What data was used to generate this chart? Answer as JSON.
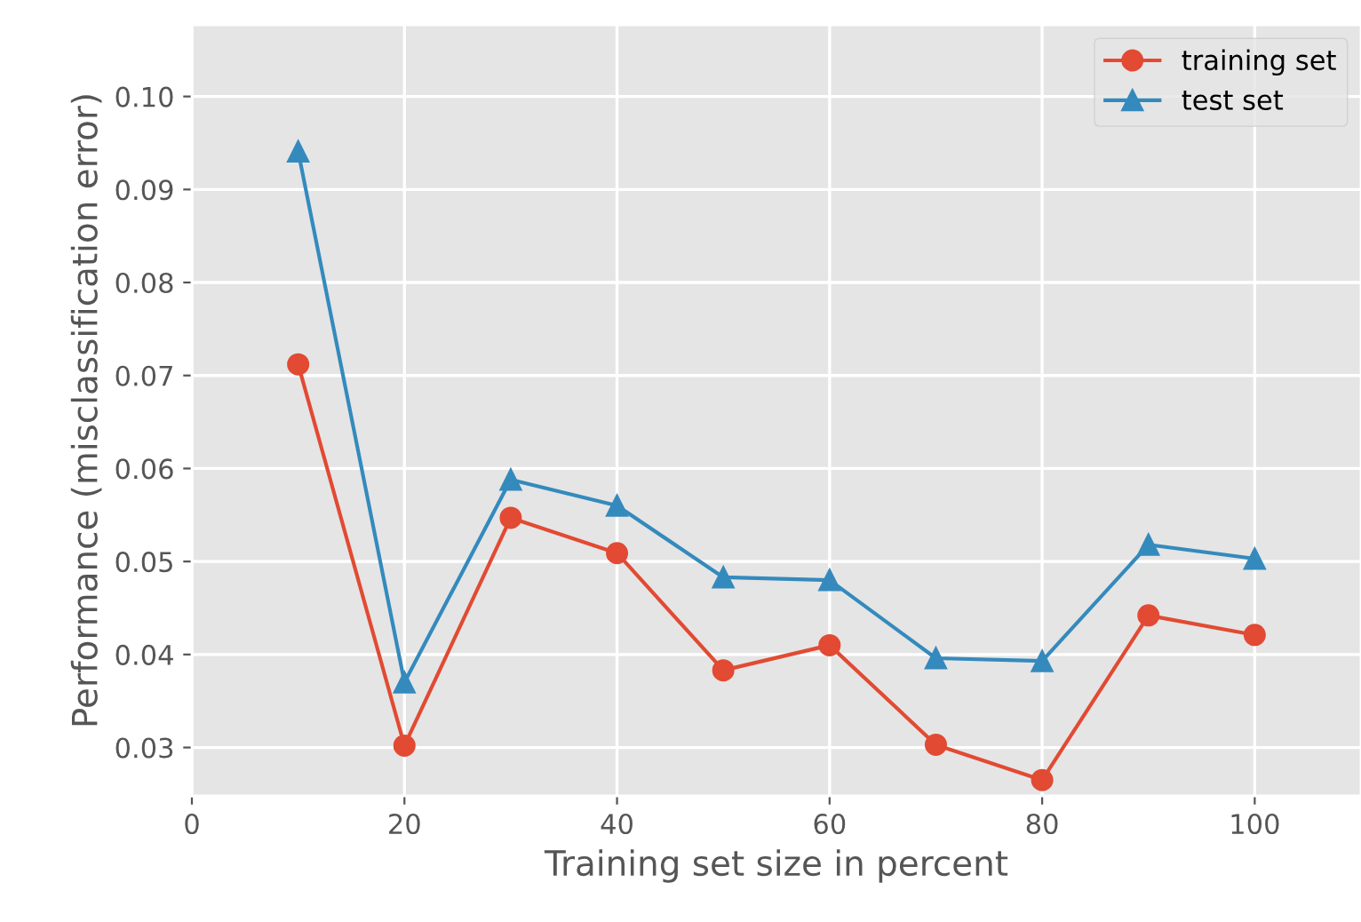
{
  "chart_data": {
    "type": "line",
    "xlabel": "Training set size in percent",
    "ylabel": "Performance (misclassification error)",
    "x": [
      10,
      20,
      30,
      40,
      50,
      60,
      70,
      80,
      90,
      100
    ],
    "series": [
      {
        "name": "training set",
        "color": "#e24a33",
        "marker": "circle",
        "values": [
          0.0712,
          0.0302,
          0.0547,
          0.0509,
          0.0383,
          0.041,
          0.0303,
          0.0265,
          0.0442,
          0.0421
        ]
      },
      {
        "name": "test set",
        "color": "#348abd",
        "marker": "triangle",
        "values": [
          0.0941,
          0.037,
          0.0588,
          0.056,
          0.0483,
          0.048,
          0.0396,
          0.0393,
          0.0518,
          0.0503
        ]
      }
    ],
    "xlim": [
      0,
      110
    ],
    "xticks": [
      0,
      20,
      40,
      60,
      80,
      100
    ],
    "ylim": [
      0.0248,
      0.1077
    ],
    "yticks": [
      {
        "value": 0.03,
        "label": "0.03"
      },
      {
        "value": 0.04,
        "label": "0.04"
      },
      {
        "value": 0.05,
        "label": "0.05"
      },
      {
        "value": 0.06,
        "label": "0.06"
      },
      {
        "value": 0.07,
        "label": "0.07"
      },
      {
        "value": 0.08,
        "label": "0.08"
      },
      {
        "value": 0.09,
        "label": "0.09"
      },
      {
        "value": 0.1,
        "label": "0.10"
      }
    ],
    "grid": true,
    "legend": "top right",
    "line_style": "solid"
  }
}
